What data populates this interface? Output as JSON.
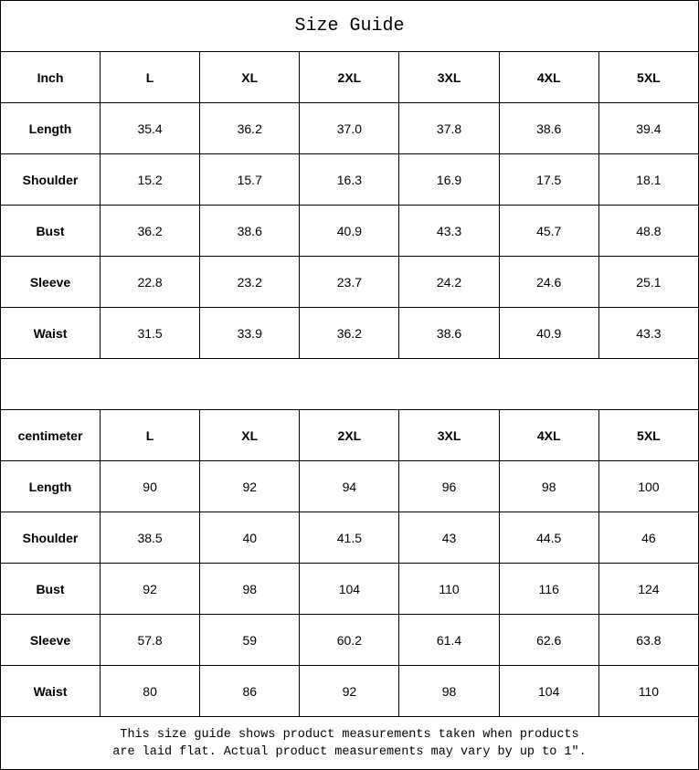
{
  "title": "Size Guide",
  "tables": [
    {
      "unit": "Inch",
      "sizes": [
        "L",
        "XL",
        "2XL",
        "3XL",
        "4XL",
        "5XL"
      ],
      "rows": [
        {
          "label": "Length",
          "values": [
            "35.4",
            "36.2",
            "37.0",
            "37.8",
            "38.6",
            "39.4"
          ]
        },
        {
          "label": "Shoulder",
          "values": [
            "15.2",
            "15.7",
            "16.3",
            "16.9",
            "17.5",
            "18.1"
          ]
        },
        {
          "label": "Bust",
          "values": [
            "36.2",
            "38.6",
            "40.9",
            "43.3",
            "45.7",
            "48.8"
          ]
        },
        {
          "label": "Sleeve",
          "values": [
            "22.8",
            "23.2",
            "23.7",
            "24.2",
            "24.6",
            "25.1"
          ]
        },
        {
          "label": "Waist",
          "values": [
            "31.5",
            "33.9",
            "36.2",
            "38.6",
            "40.9",
            "43.3"
          ]
        }
      ]
    },
    {
      "unit": "centimeter",
      "sizes": [
        "L",
        "XL",
        "2XL",
        "3XL",
        "4XL",
        "5XL"
      ],
      "rows": [
        {
          "label": "Length",
          "values": [
            "90",
            "92",
            "94",
            "96",
            "98",
            "100"
          ]
        },
        {
          "label": "Shoulder",
          "values": [
            "38.5",
            "40",
            "41.5",
            "43",
            "44.5",
            "46"
          ]
        },
        {
          "label": "Bust",
          "values": [
            "92",
            "98",
            "104",
            "110",
            "116",
            "124"
          ]
        },
        {
          "label": "Sleeve",
          "values": [
            "57.8",
            "59",
            "60.2",
            "61.4",
            "62.6",
            "63.8"
          ]
        },
        {
          "label": "Waist",
          "values": [
            "80",
            "86",
            "92",
            "98",
            "104",
            "110"
          ]
        }
      ]
    }
  ],
  "footer": {
    "line1": "This size guide shows product measurements taken when products",
    "line2": "are laid flat. Actual product measurements may vary by up to 1″."
  }
}
